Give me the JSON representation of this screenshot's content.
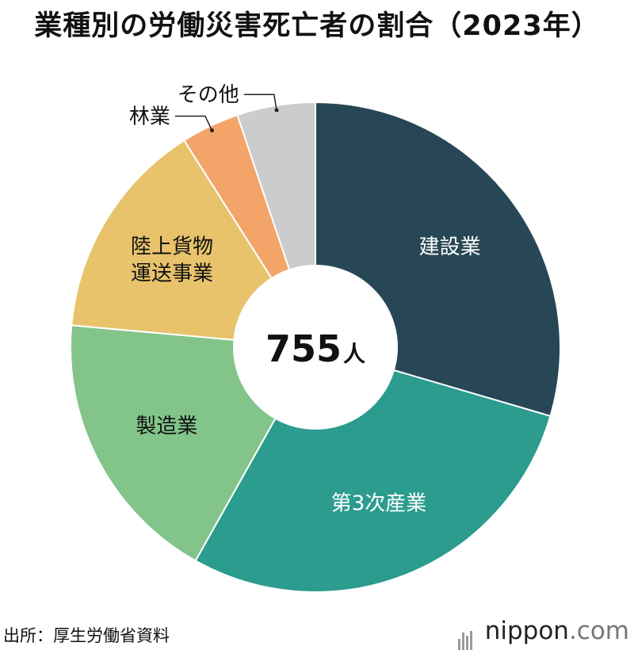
{
  "title": "業種別の労働災害死亡者の割合（2023年）",
  "source": "出所：厚生労働省資料",
  "brand": {
    "name": "nippon",
    "suffix": ".com"
  },
  "chart_data": {
    "type": "pie",
    "donut": true,
    "center_label": {
      "number": "755",
      "unit": "人"
    },
    "slices": [
      {
        "label": "建設業",
        "value": 223,
        "color": "#274756",
        "text_color": "#ffffff"
      },
      {
        "label": "第3次産業",
        "value": 216,
        "color": "#2b9c8e",
        "text_color": "#ffffff"
      },
      {
        "label": "製造業",
        "value": 138,
        "color": "#82c48a",
        "text_color": "#111111"
      },
      {
        "label": "陸上貨物\n運送事業",
        "value": 110,
        "color": "#e8c36c",
        "text_color": "#111111"
      },
      {
        "label": "林業",
        "value": 29,
        "color": "#f3a468",
        "text_color": "#111111"
      },
      {
        "label": "その他",
        "value": 39,
        "color": "#cccccc",
        "text_color": "#111111"
      }
    ]
  }
}
